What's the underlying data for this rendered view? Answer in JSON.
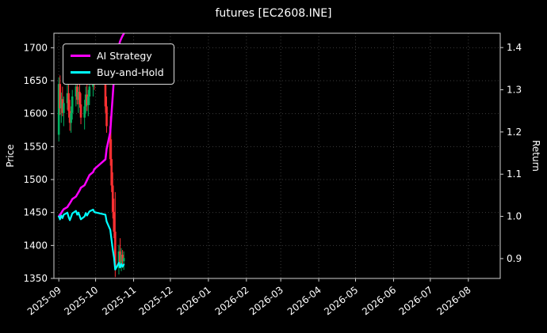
{
  "title": "futures [EC2608.INE]",
  "legend": {
    "items": [
      {
        "label": "AI Strategy",
        "color": "#ff00ff"
      },
      {
        "label": "Buy-and-Hold",
        "color": "#00ffff"
      }
    ]
  },
  "chart_data": {
    "type": "mixed",
    "subtype": "candlestick-with-lines",
    "title": "futures [EC2608.INE]",
    "background": "#000000",
    "grid": {
      "on": true,
      "color": "#3c3c3c",
      "style": "dotted"
    },
    "legend_position": "upper-left",
    "left_axis": {
      "label": "Price",
      "ticks": [
        1350,
        1400,
        1450,
        1500,
        1550,
        1600,
        1650,
        1700
      ],
      "range": [
        1350,
        1722
      ]
    },
    "right_axis": {
      "label": "Return",
      "ticks": [
        0.9,
        1.0,
        1.1,
        1.2,
        1.3,
        1.4
      ],
      "range": [
        0.853,
        1.434
      ]
    },
    "x_axis": {
      "tick_labels": [
        "2025-09",
        "2025-10",
        "2025-11",
        "2025-12",
        "2026-01",
        "2026-02",
        "2026-03",
        "2026-04",
        "2026-05",
        "2026-06",
        "2026-07",
        "2026-08"
      ],
      "tick_days": [
        0,
        30,
        61,
        91,
        122,
        153,
        181,
        212,
        242,
        273,
        303,
        334
      ],
      "range_days": [
        -4,
        360
      ]
    },
    "series": [
      {
        "name": "futures OHLC",
        "type": "candlestick",
        "axis": "left",
        "up_color": "#00b060",
        "down_color": "#fe3032",
        "points": [
          [
            0,
            1568,
            1655,
            1558,
            1645
          ],
          [
            1,
            1645,
            1658,
            1598,
            1608
          ],
          [
            2,
            1608,
            1632,
            1586,
            1622
          ],
          [
            3,
            1622,
            1641,
            1596,
            1601
          ],
          [
            4,
            1601,
            1626,
            1581,
            1616
          ],
          [
            7,
            1616,
            1646,
            1606,
            1631
          ],
          [
            8,
            1631,
            1651,
            1594,
            1604
          ],
          [
            9,
            1604,
            1621,
            1574,
            1586
          ],
          [
            10,
            1586,
            1611,
            1571,
            1601
          ],
          [
            11,
            1601,
            1636,
            1591,
            1626
          ],
          [
            14,
            1626,
            1656,
            1611,
            1641
          ],
          [
            15,
            1641,
            1661,
            1614,
            1621
          ],
          [
            16,
            1621,
            1641,
            1601,
            1633
          ],
          [
            17,
            1633,
            1651,
            1609,
            1614
          ],
          [
            18,
            1614,
            1631,
            1584,
            1594
          ],
          [
            21,
            1594,
            1621,
            1576,
            1611
          ],
          [
            22,
            1611,
            1641,
            1601,
            1629
          ],
          [
            23,
            1629,
            1646,
            1604,
            1613
          ],
          [
            24,
            1613,
            1636,
            1596,
            1626
          ],
          [
            25,
            1626,
            1651,
            1613,
            1641
          ],
          [
            28,
            1641,
            1666,
            1626,
            1653
          ],
          [
            29,
            1653,
            1671,
            1636,
            1646
          ],
          [
            38,
            1646,
            1663,
            1601,
            1611
          ],
          [
            39,
            1611,
            1626,
            1571,
            1581
          ],
          [
            42,
            1581,
            1596,
            1521,
            1531
          ],
          [
            43,
            1531,
            1561,
            1481,
            1491
          ],
          [
            44,
            1491,
            1511,
            1441,
            1451
          ],
          [
            45,
            1451,
            1471,
            1411,
            1421
          ],
          [
            46,
            1421,
            1481,
            1352,
            1366
          ],
          [
            49,
            1366,
            1401,
            1356,
            1391
          ],
          [
            50,
            1391,
            1411,
            1366,
            1373
          ],
          [
            51,
            1373,
            1396,
            1361,
            1386
          ],
          [
            52,
            1386,
            1393,
            1366,
            1376
          ],
          [
            53,
            1376,
            1391,
            1363,
            1381
          ]
        ]
      },
      {
        "name": "AI Strategy",
        "type": "line",
        "axis": "right",
        "color": "#ff00ff",
        "width": 2.5,
        "days": [
          0,
          1,
          2,
          3,
          4,
          7,
          8,
          9,
          10,
          11,
          14,
          15,
          16,
          17,
          18,
          21,
          22,
          23,
          24,
          25,
          28,
          29,
          38,
          39,
          42,
          43,
          44,
          45,
          46,
          49,
          50,
          51,
          52,
          53
        ],
        "values": [
          1.0,
          1.004,
          1.008,
          1.013,
          1.017,
          1.022,
          1.027,
          1.031,
          1.036,
          1.041,
          1.047,
          1.052,
          1.057,
          1.062,
          1.068,
          1.074,
          1.08,
          1.086,
          1.092,
          1.098,
          1.105,
          1.112,
          1.135,
          1.16,
          1.2,
          1.245,
          1.285,
          1.33,
          1.385,
          1.405,
          1.415,
          1.422,
          1.428,
          1.433
        ]
      },
      {
        "name": "Buy-and-Hold",
        "type": "line",
        "axis": "right",
        "color": "#00ffff",
        "width": 2.2,
        "days": [
          0,
          1,
          2,
          3,
          4,
          7,
          8,
          9,
          10,
          11,
          14,
          15,
          16,
          17,
          18,
          21,
          22,
          23,
          24,
          25,
          28,
          29,
          38,
          39,
          42,
          43,
          44,
          45,
          46,
          49,
          50,
          51,
          52,
          53
        ],
        "values": [
          1.0,
          0.993,
          1.002,
          0.996,
          1.004,
          1.009,
          0.998,
          0.991,
          0.999,
          1.007,
          1.013,
          1.004,
          1.009,
          1.001,
          0.993,
          1.0,
          1.008,
          1.002,
          1.007,
          1.012,
          1.016,
          1.01,
          1.004,
          0.988,
          0.968,
          0.944,
          0.922,
          0.903,
          0.874,
          0.89,
          0.879,
          0.887,
          0.881,
          0.886
        ]
      }
    ]
  }
}
